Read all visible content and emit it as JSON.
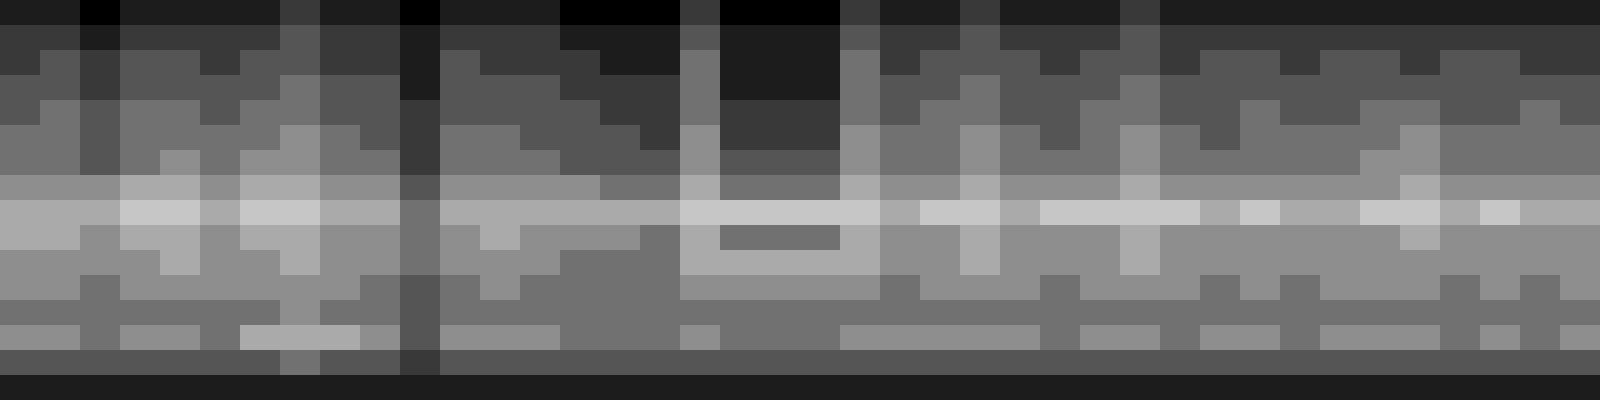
{
  "chart_data": {
    "type": "heatmap",
    "tick_labels": false,
    "grid": false,
    "xlim": [
      0,
      40
    ],
    "ylim": [
      0,
      16
    ],
    "color_range": [
      0,
      9
    ],
    "cells": [
      [
        1,
        1,
        0,
        1,
        1,
        1,
        1,
        2,
        1,
        1,
        0,
        1,
        1,
        1,
        0,
        0,
        0,
        2,
        0,
        0,
        0,
        2,
        1,
        1,
        2,
        1,
        1,
        1,
        2,
        1,
        1,
        1,
        1,
        1,
        1,
        1,
        1,
        1,
        1,
        1
      ],
      [
        2,
        2,
        1,
        2,
        2,
        2,
        2,
        3,
        2,
        2,
        1,
        2,
        2,
        2,
        1,
        1,
        1,
        3,
        1,
        1,
        1,
        3,
        2,
        2,
        3,
        2,
        2,
        2,
        3,
        2,
        2,
        2,
        2,
        2,
        2,
        2,
        2,
        2,
        2,
        2
      ],
      [
        2,
        3,
        2,
        3,
        3,
        2,
        3,
        3,
        2,
        2,
        1,
        3,
        2,
        2,
        2,
        1,
        1,
        4,
        1,
        1,
        1,
        4,
        2,
        3,
        3,
        3,
        2,
        3,
        3,
        2,
        3,
        3,
        2,
        3,
        3,
        2,
        3,
        3,
        2,
        2
      ],
      [
        3,
        3,
        2,
        3,
        3,
        3,
        3,
        4,
        3,
        3,
        1,
        3,
        3,
        3,
        2,
        2,
        2,
        4,
        1,
        1,
        1,
        4,
        3,
        3,
        4,
        3,
        3,
        3,
        4,
        3,
        3,
        3,
        3,
        3,
        3,
        3,
        3,
        3,
        3,
        3
      ],
      [
        3,
        4,
        3,
        4,
        4,
        3,
        4,
        4,
        3,
        3,
        2,
        3,
        3,
        3,
        3,
        2,
        2,
        4,
        2,
        2,
        2,
        4,
        3,
        4,
        4,
        3,
        3,
        4,
        4,
        3,
        3,
        4,
        3,
        3,
        4,
        4,
        3,
        3,
        4,
        3
      ],
      [
        4,
        4,
        3,
        4,
        4,
        4,
        4,
        5,
        4,
        3,
        2,
        4,
        4,
        3,
        3,
        3,
        2,
        5,
        2,
        2,
        2,
        5,
        4,
        4,
        5,
        4,
        3,
        4,
        5,
        4,
        3,
        4,
        4,
        4,
        4,
        5,
        4,
        4,
        4,
        4
      ],
      [
        4,
        4,
        3,
        4,
        5,
        4,
        5,
        5,
        4,
        4,
        2,
        4,
        4,
        4,
        3,
        3,
        3,
        5,
        3,
        3,
        3,
        5,
        4,
        4,
        5,
        4,
        4,
        4,
        5,
        4,
        4,
        4,
        4,
        4,
        5,
        5,
        4,
        4,
        4,
        4
      ],
      [
        5,
        5,
        5,
        6,
        6,
        5,
        6,
        6,
        5,
        5,
        3,
        5,
        5,
        5,
        5,
        4,
        4,
        6,
        4,
        4,
        4,
        6,
        5,
        5,
        6,
        5,
        5,
        5,
        6,
        5,
        5,
        5,
        5,
        5,
        5,
        6,
        5,
        5,
        5,
        5
      ],
      [
        6,
        6,
        6,
        7,
        7,
        6,
        7,
        7,
        6,
        6,
        4,
        6,
        6,
        6,
        6,
        6,
        6,
        7,
        7,
        7,
        7,
        7,
        6,
        7,
        7,
        6,
        7,
        7,
        7,
        7,
        6,
        7,
        6,
        6,
        7,
        7,
        6,
        7,
        6,
        6
      ],
      [
        6,
        6,
        5,
        6,
        6,
        5,
        6,
        6,
        5,
        5,
        4,
        5,
        6,
        5,
        5,
        5,
        4,
        6,
        4,
        4,
        4,
        6,
        5,
        5,
        6,
        5,
        5,
        5,
        6,
        5,
        5,
        5,
        5,
        5,
        5,
        6,
        5,
        5,
        5,
        5
      ],
      [
        5,
        5,
        5,
        5,
        6,
        5,
        5,
        6,
        5,
        5,
        4,
        5,
        5,
        5,
        4,
        4,
        4,
        6,
        6,
        6,
        6,
        6,
        5,
        5,
        6,
        5,
        5,
        5,
        6,
        5,
        5,
        5,
        5,
        5,
        5,
        5,
        5,
        5,
        5,
        5
      ],
      [
        5,
        5,
        4,
        5,
        5,
        5,
        5,
        5,
        5,
        4,
        3,
        4,
        5,
        4,
        4,
        4,
        4,
        5,
        5,
        5,
        5,
        5,
        4,
        5,
        5,
        5,
        4,
        5,
        5,
        5,
        4,
        5,
        4,
        5,
        5,
        5,
        4,
        5,
        4,
        5
      ],
      [
        4,
        4,
        4,
        4,
        4,
        4,
        4,
        5,
        4,
        4,
        3,
        4,
        4,
        4,
        4,
        4,
        4,
        4,
        4,
        4,
        4,
        4,
        4,
        4,
        4,
        4,
        4,
        4,
        4,
        4,
        4,
        4,
        4,
        4,
        4,
        4,
        4,
        4,
        4,
        4
      ],
      [
        5,
        5,
        4,
        5,
        5,
        4,
        6,
        6,
        6,
        5,
        3,
        5,
        5,
        5,
        4,
        4,
        4,
        5,
        4,
        4,
        4,
        5,
        5,
        5,
        5,
        5,
        4,
        5,
        5,
        4,
        5,
        5,
        4,
        5,
        5,
        5,
        4,
        5,
        4,
        5
      ],
      [
        3,
        3,
        3,
        3,
        3,
        3,
        3,
        4,
        3,
        3,
        2,
        3,
        3,
        3,
        3,
        3,
        3,
        3,
        3,
        3,
        3,
        3,
        3,
        3,
        3,
        3,
        3,
        3,
        3,
        3,
        3,
        3,
        3,
        3,
        3,
        3,
        3,
        3,
        3,
        3
      ],
      [
        1,
        1,
        1,
        1,
        1,
        1,
        1,
        1,
        1,
        1,
        1,
        1,
        1,
        1,
        1,
        1,
        1,
        1,
        1,
        1,
        1,
        1,
        1,
        1,
        1,
        1,
        1,
        1,
        1,
        1,
        1,
        1,
        1,
        1,
        1,
        1,
        1,
        1,
        1,
        1
      ]
    ]
  }
}
